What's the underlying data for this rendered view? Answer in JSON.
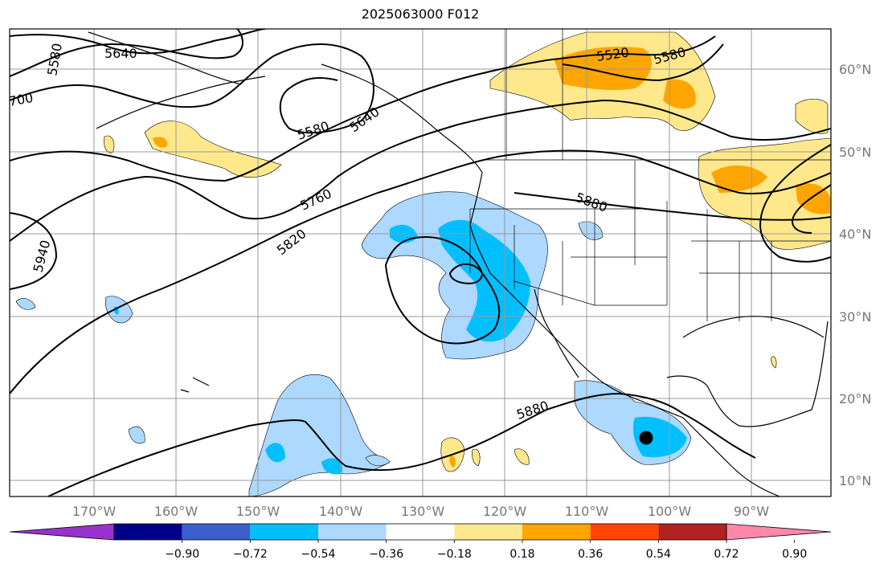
{
  "title": "2025063000 F012",
  "map": {
    "lon_labels": [
      "170°W",
      "160°W",
      "150°W",
      "140°W",
      "130°W",
      "120°W",
      "110°W",
      "100°W",
      "90°W"
    ],
    "lat_labels": [
      "60°N",
      "50°N",
      "40°N",
      "30°N",
      "20°N",
      "10°N"
    ],
    "contour_labels": [
      "5640",
      "5580",
      "700",
      "5520",
      "5580",
      "5580",
      "5640",
      "5760",
      "5880",
      "5820",
      "5940",
      "5880"
    ],
    "colors": {
      "ocean": "#ffffff",
      "contour": "#000000",
      "grid": "#999999",
      "coast": "#000000"
    }
  },
  "colorbar": {
    "tick_labels": [
      "−0.90",
      "−0.72",
      "−0.54",
      "−0.36",
      "−0.18",
      "0.18",
      "0.36",
      "0.54",
      "0.72",
      "0.90"
    ],
    "colors": [
      "#9932cc",
      "#00008b",
      "#3a5fcd",
      "#00bfff",
      "#add8ff",
      "#ffffff",
      "#ffe88c",
      "#ffa500",
      "#ff4500",
      "#b22222",
      "#ff88aa"
    ]
  }
}
